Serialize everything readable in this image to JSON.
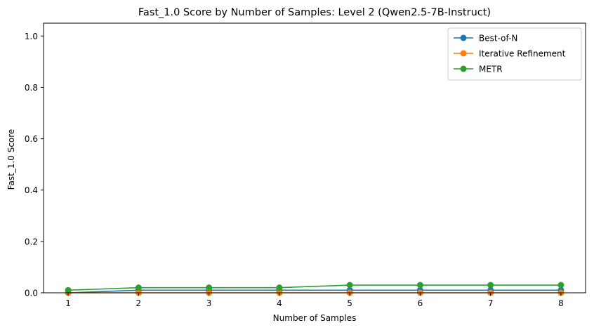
{
  "chart_data": {
    "type": "line",
    "title": "Fast_1.0 Score by Number of Samples: Level 2 (Qwen2.5-7B-Instruct)",
    "xlabel": "Number of Samples",
    "ylabel": "Fast_1.0 Score",
    "x": [
      1,
      2,
      3,
      4,
      5,
      6,
      7,
      8
    ],
    "xlim": [
      0.65,
      8.35
    ],
    "ylim": [
      0,
      1.05
    ],
    "yticks": [
      0.0,
      0.2,
      0.4,
      0.6,
      0.8,
      1.0
    ],
    "ytick_labels": [
      "0.0",
      "0.2",
      "0.4",
      "0.6",
      "0.8",
      "1.0"
    ],
    "xtick_labels": [
      "1",
      "2",
      "3",
      "4",
      "5",
      "6",
      "7",
      "8"
    ],
    "grid": false,
    "legend_position": "top-right",
    "series": [
      {
        "name": "Best-of-N",
        "color": "#1f77b4",
        "values": [
          0.0,
          0.01,
          0.01,
          0.01,
          0.01,
          0.01,
          0.01,
          0.01
        ]
      },
      {
        "name": "Iterative Refinement",
        "color": "#ff7f0e",
        "values": [
          0.0,
          0.0,
          0.0,
          0.0,
          0.0,
          0.0,
          0.0,
          0.0
        ]
      },
      {
        "name": "METR",
        "color": "#2ca02c",
        "values": [
          0.01,
          0.02,
          0.02,
          0.02,
          0.03,
          0.03,
          0.03,
          0.03
        ]
      }
    ]
  }
}
